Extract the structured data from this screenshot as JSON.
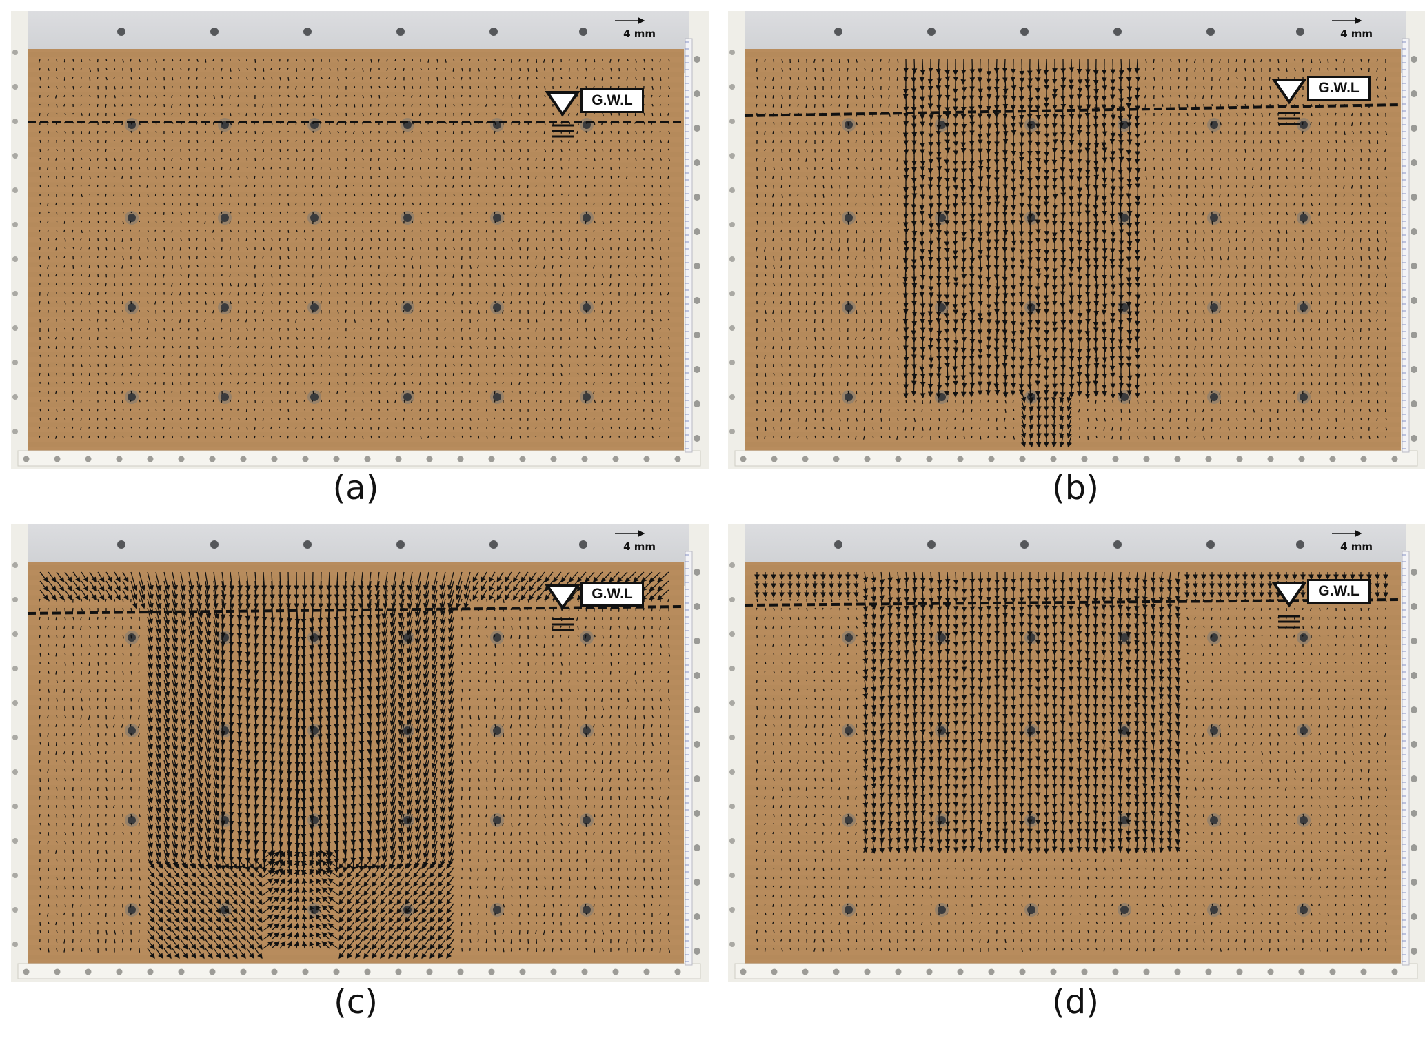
{
  "figure": {
    "panels": [
      {
        "id": "a",
        "caption": "(a)",
        "scale_label": "4 mm",
        "gwl_label": "G.W.L",
        "motion": "minimal"
      },
      {
        "id": "b",
        "caption": "(b)",
        "scale_label": "4 mm",
        "gwl_label": "G.W.L",
        "motion": "column"
      },
      {
        "id": "c",
        "caption": "(c)",
        "scale_label": "4 mm",
        "gwl_label": "G.W.L",
        "motion": "collapse"
      },
      {
        "id": "d",
        "caption": "(d)",
        "scale_label": "4 mm",
        "gwl_label": "G.W.L",
        "motion": "settled"
      }
    ],
    "colors": {
      "soil": "#b88c5d",
      "soil_dark": "#a77d51",
      "vector": "#111111",
      "frame": "#efeee8",
      "bolt": "#55575a"
    }
  }
}
